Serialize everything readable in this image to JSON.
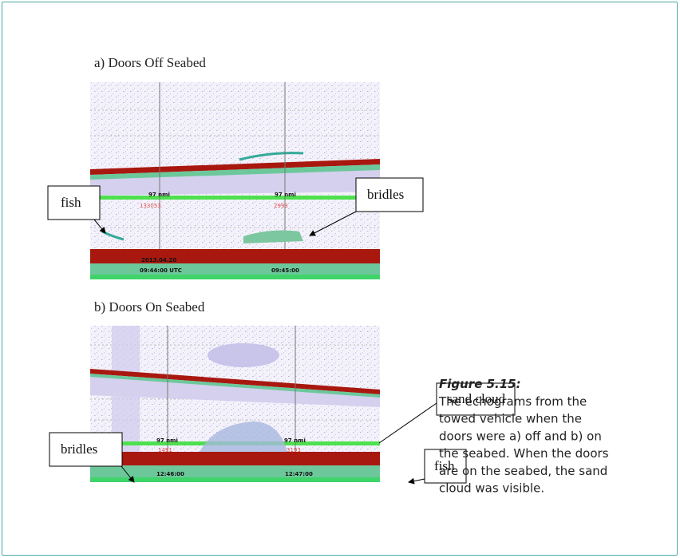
{
  "panel_a": {
    "title": "a) Doors Off Seabed",
    "callouts": [
      "fish",
      "bridles"
    ],
    "range_labels": [
      "97 nmi",
      "97 nmi"
    ],
    "counters": [
      "133053",
      "2993"
    ],
    "date": "2013.04.20",
    "times": [
      "09:44:00 UTC",
      "09:45:00"
    ]
  },
  "panel_b": {
    "title": "b) Doors On Seabed",
    "callouts": [
      "bridles",
      "sand cloud",
      "fish"
    ],
    "range_labels": [
      "97 nmi",
      "97 nmi"
    ],
    "counters": [
      "1491",
      "3193"
    ],
    "times": [
      "12:46:00",
      "12:47:00"
    ]
  },
  "caption": {
    "label": "Figure 5.15:",
    "lines": [
      "The echograms from the",
      "towed vehicle when the",
      "doors were a) off and b) on",
      "the seabed. When the doors",
      "are on the seabed, the sand",
      "cloud was visible."
    ]
  }
}
